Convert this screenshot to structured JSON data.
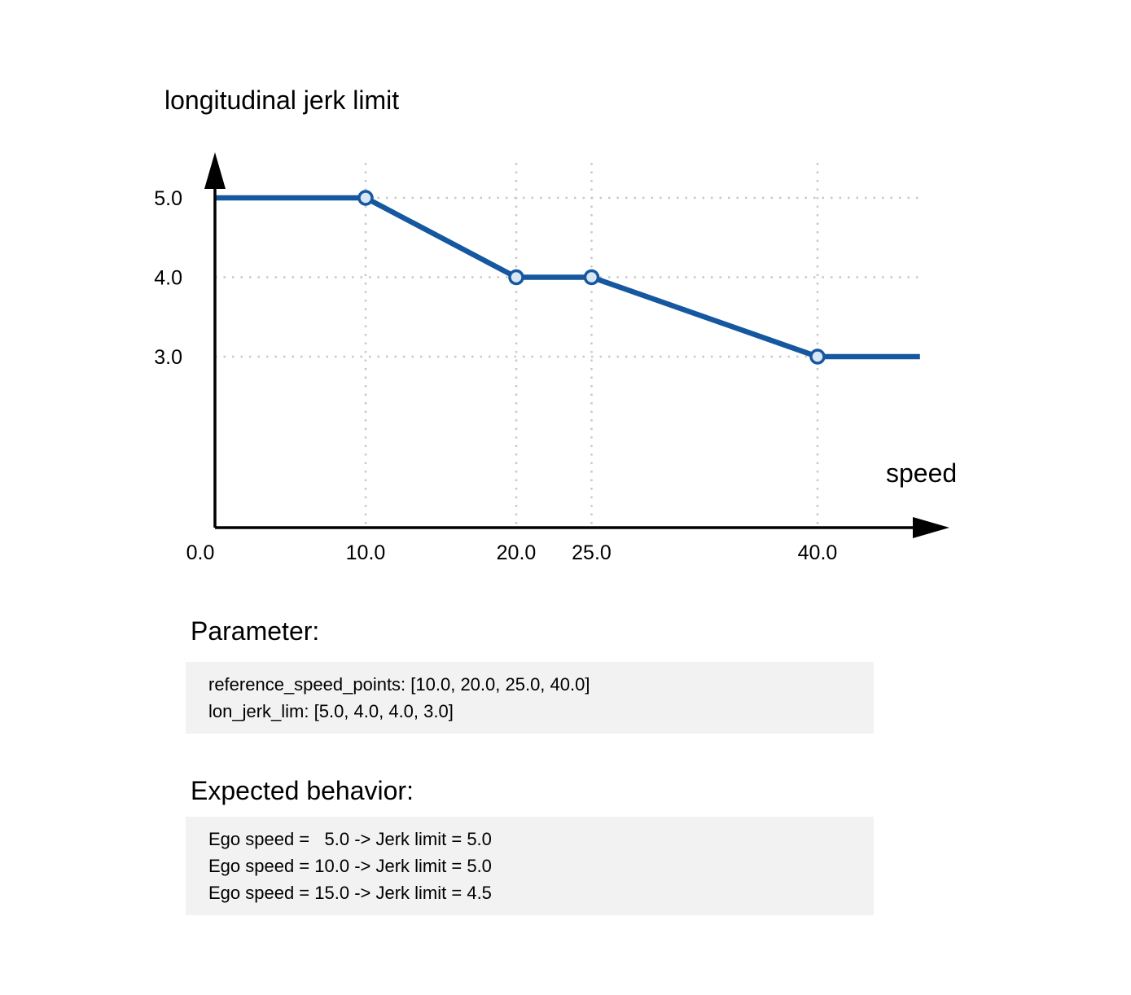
{
  "chart_data": {
    "type": "line",
    "title": "longitudinal jerk limit",
    "xlabel": "speed",
    "ylabel": "",
    "x_ticks": [
      "0.0",
      "10.0",
      "20.0",
      "25.0",
      "40.0"
    ],
    "x_tick_values": [
      0,
      10,
      20,
      25,
      40
    ],
    "y_ticks": [
      "5.0",
      "4.0",
      "3.0"
    ],
    "y_tick_values": [
      5.0,
      4.0,
      3.0
    ],
    "xlim": [
      0,
      47
    ],
    "ylim": [
      0.85,
      5.6
    ],
    "grid": "dotted",
    "legend": "none",
    "series": [
      {
        "name": "lon_jerk_lim",
        "points": [
          [
            0,
            5.0
          ],
          [
            10,
            5.0
          ],
          [
            20,
            4.0
          ],
          [
            25,
            4.0
          ],
          [
            40,
            3.0
          ],
          [
            46.8,
            3.0
          ]
        ],
        "marker_points": [
          [
            10,
            5.0
          ],
          [
            20,
            4.0
          ],
          [
            25,
            4.0
          ],
          [
            40,
            3.0
          ]
        ],
        "color": "#16589f",
        "marker_fill": "#d9e6f4"
      }
    ]
  },
  "sections": {
    "parameter": {
      "heading": "Parameter:",
      "lines": [
        "reference_speed_points: [10.0, 20.0, 25.0, 40.0]",
        "lon_jerk_lim: [5.0, 4.0, 4.0, 3.0]"
      ]
    },
    "expected": {
      "heading": "Expected behavior:",
      "lines": [
        "Ego speed =   5.0 -> Jerk limit = 5.0",
        "Ego speed = 10.0 -> Jerk limit = 5.0",
        "Ego speed = 15.0 -> Jerk limit = 4.5"
      ]
    }
  },
  "colors": {
    "line": "#16589f",
    "marker_fill": "#d9e6f4",
    "grid": "#c8c8c8",
    "axis": "#000000",
    "box_bg": "#f2f2f2",
    "text": "#000000"
  }
}
